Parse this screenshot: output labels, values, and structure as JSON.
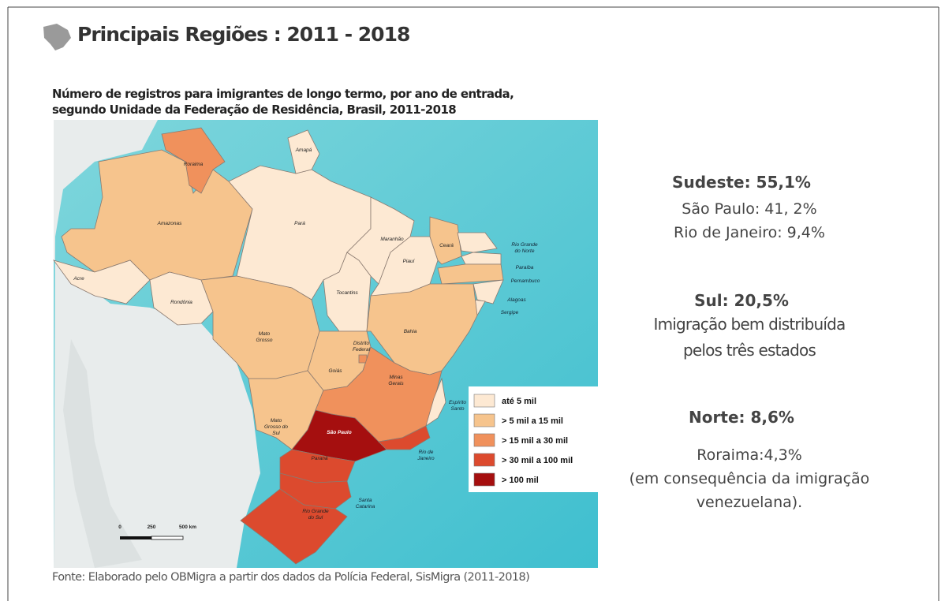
{
  "header": {
    "title": "Principais Regiões : 2011 - 2018"
  },
  "map": {
    "title_lines": [
      "Número de registros para imigrantes de longo termo, por ano de entrada,",
      "segundo Unidade da Federação de Residência, Brasil, 2011-2018"
    ],
    "states": [
      [
        "Roraima"
      ],
      [
        "Amapá"
      ],
      [
        "Amazonas"
      ],
      [
        "Pará"
      ],
      [
        "Acre"
      ],
      [
        "Rondônia"
      ],
      [
        "Mato",
        "Grosso"
      ],
      [
        "Tocantins"
      ],
      [
        "Maranhão"
      ],
      [
        "Piauí"
      ],
      [
        "Ceará"
      ],
      [
        "Rio Grande",
        "do Norte"
      ],
      [
        "Paraíba"
      ],
      [
        "Pernambuco"
      ],
      [
        "Alagoas"
      ],
      [
        "Sergipe"
      ],
      [
        "Bahia"
      ],
      [
        "Goiás"
      ],
      [
        "Distrito",
        "Federal"
      ],
      [
        "Mato",
        "Grosso do",
        "Sul"
      ],
      [
        "Minas",
        "Gerais"
      ],
      [
        "Espírito",
        "Santo"
      ],
      [
        "São Paulo"
      ],
      [
        "Rio de",
        "Janeiro"
      ],
      [
        "Paraná"
      ],
      [
        "Santa",
        "Catarina"
      ],
      [
        "Rio Grande",
        "do Sul"
      ]
    ],
    "legend": [
      "até 5 mil",
      "> 5 mil a 15 mil",
      "> 15 mil a 30 mil",
      "> 30 mil a 100 mil",
      "> 100 mil"
    ],
    "scale": [
      "0",
      "250",
      "500 km"
    ],
    "source": "Fonte: Elaborado pelo OBMigra a partir dos dados da Polícia Federal, SisMigra (2011-2018)"
  },
  "summary": [
    {
      "heading": "Sudeste: 55,1%",
      "lines": [
        "São Paulo: 41, 2%",
        "Rio de Janeiro: 9,4%"
      ]
    },
    {
      "heading": "Sul: 20,5%",
      "lines": [
        "Imigração bem distribuída",
        "pelos três estados"
      ]
    },
    {
      "heading": "Norte: 8,6%",
      "lines": [
        "Roraima:4,3%",
        "(em consequência da imigração",
        "venezuelana)."
      ]
    }
  ]
}
